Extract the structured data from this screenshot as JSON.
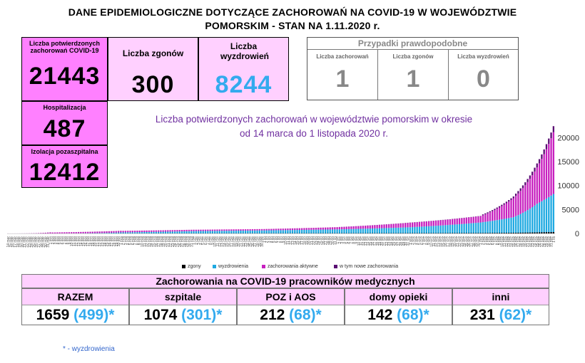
{
  "title_line1": "DANE EPIDEMIOLOGICZNE DOTYCZĄCE ZACHOROWAŃ NA COVID-19 W WOJEWÓDZTWIE",
  "title_line2": "POMORSKIM - STAN NA 1.11.2020 r.",
  "stats": {
    "confirmed_label": "Liczba potwierdzonych zachorowań COVID-19",
    "confirmed_value": "21443",
    "deaths_label": "Liczba zgonów",
    "deaths_value": "300",
    "recovered_label": "Liczba wyzdrowień",
    "recovered_value": "8244",
    "hosp_label": "Hospitalizacja",
    "hosp_value": "487",
    "isolation_label": "Izolacja pozaszpitalna",
    "isolation_value": "12412"
  },
  "probable": {
    "header": "Przypadki prawdopodobne",
    "cells": [
      {
        "label": "Liczba zachorowań",
        "value": "1"
      },
      {
        "label": "Liczba zgonów",
        "value": "1"
      },
      {
        "label": "Liczba wyzdrowień",
        "value": "0"
      }
    ]
  },
  "colors": {
    "deaths": "#000000",
    "recovered": "#1fa9e1",
    "active": "#c71fbf",
    "new_cases": "#5a0f73"
  },
  "chart_data": {
    "type": "bar",
    "stacked": true,
    "title": "Liczba potwierdzonych zachorowań w województwie pomorskim w okresie od 14 marca do 1 listopada 2020 r.",
    "title_line1": "Liczba potwierdzonych zachorowań w województwie pomorskim w okresie",
    "title_line2": "od 14 marca do 1 listopada 2020 r.",
    "x_start": "2020-03-14",
    "x_end": "2020-11-01",
    "ylim": [
      0,
      22000
    ],
    "y_ticks": [
      0,
      5000,
      10000,
      15000,
      20000
    ],
    "y_axis_position": "right",
    "legend_position": "bottom",
    "series": [
      {
        "name": "zgony",
        "color": "#000000"
      },
      {
        "name": "wyzdrowienia",
        "color": "#1fa9e1"
      },
      {
        "name": "zachorowania aktywne",
        "color": "#c71fbf"
      },
      {
        "name": "w tym nowe zachorowania",
        "color": "#5a0f73"
      }
    ],
    "checkpoints": [
      {
        "date": "2020-03-14",
        "confirmed": 5,
        "recovered": 0,
        "deaths": 0
      },
      {
        "date": "2020-04-01",
        "confirmed": 200,
        "recovered": 10,
        "deaths": 3
      },
      {
        "date": "2020-05-01",
        "confirmed": 550,
        "recovered": 230,
        "deaths": 18
      },
      {
        "date": "2020-06-01",
        "confirmed": 800,
        "recovered": 500,
        "deaths": 28
      },
      {
        "date": "2020-07-01",
        "confirmed": 950,
        "recovered": 650,
        "deaths": 35
      },
      {
        "date": "2020-08-01",
        "confirmed": 1350,
        "recovered": 850,
        "deaths": 45
      },
      {
        "date": "2020-09-01",
        "confirmed": 2300,
        "recovered": 1300,
        "deaths": 60
      },
      {
        "date": "2020-10-01",
        "confirmed": 3700,
        "recovered": 2300,
        "deaths": 90
      },
      {
        "date": "2020-10-15",
        "confirmed": 7500,
        "recovered": 3400,
        "deaths": 140
      },
      {
        "date": "2020-10-25",
        "confirmed": 14000,
        "recovered": 6200,
        "deaths": 220
      },
      {
        "date": "2020-11-01",
        "confirmed": 21443,
        "recovered": 8244,
        "deaths": 300
      }
    ]
  },
  "medical": {
    "header": "Zachorowania na COVID-19 pracowników medycznych",
    "note": "* - wyzdrowienia",
    "cols": [
      {
        "label": "RAZEM",
        "value": "1659",
        "recovered": "(499)*"
      },
      {
        "label": "szpitale",
        "value": "1074",
        "recovered": "(301)*"
      },
      {
        "label": "POZ i AOS",
        "value": "212",
        "recovered": "(68)*"
      },
      {
        "label": "domy opieki",
        "value": "142",
        "recovered": "(68)*"
      },
      {
        "label": "inni",
        "value": "231",
        "recovered": "(62)*"
      }
    ]
  }
}
